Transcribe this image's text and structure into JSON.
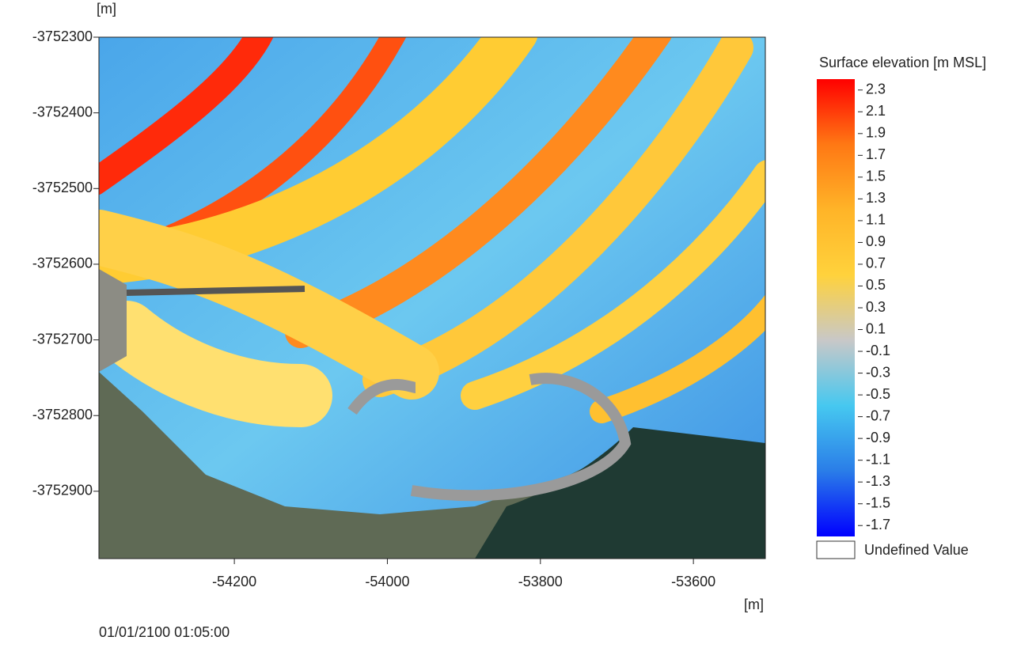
{
  "chart_data": {
    "type": "heatmap",
    "y_unit": "[m]",
    "x_unit": "[m]",
    "timestamp": "01/01/2100 01:05:00",
    "xlim": [
      -54377,
      -53506
    ],
    "xticks": [
      -54200,
      -54000,
      -53800,
      -53600
    ],
    "ylim": [
      -3752989,
      -3752300
    ],
    "yticks": [
      -3752300,
      -3752400,
      -3752500,
      -3752600,
      -3752700,
      -3752800,
      -3752900
    ],
    "colorbar": {
      "title": "Surface elevation [m MSL]",
      "clim": [
        -1.8,
        2.4
      ],
      "ticks": [
        2.3,
        2.1,
        1.9,
        1.7,
        1.5,
        1.3,
        1.1,
        0.9,
        0.7,
        0.5,
        0.3,
        0.1,
        -0.1,
        -0.3,
        -0.5,
        -0.7,
        -0.9,
        -1.1,
        -1.3,
        -1.5,
        -1.7
      ],
      "colors": [
        "#0000ff",
        "#2a7de8",
        "#46c8f0",
        "#c8c8c8",
        "#ffd23c",
        "#ffb428",
        "#ff7814",
        "#ff0000"
      ],
      "undefined_label": "Undefined Value"
    }
  }
}
